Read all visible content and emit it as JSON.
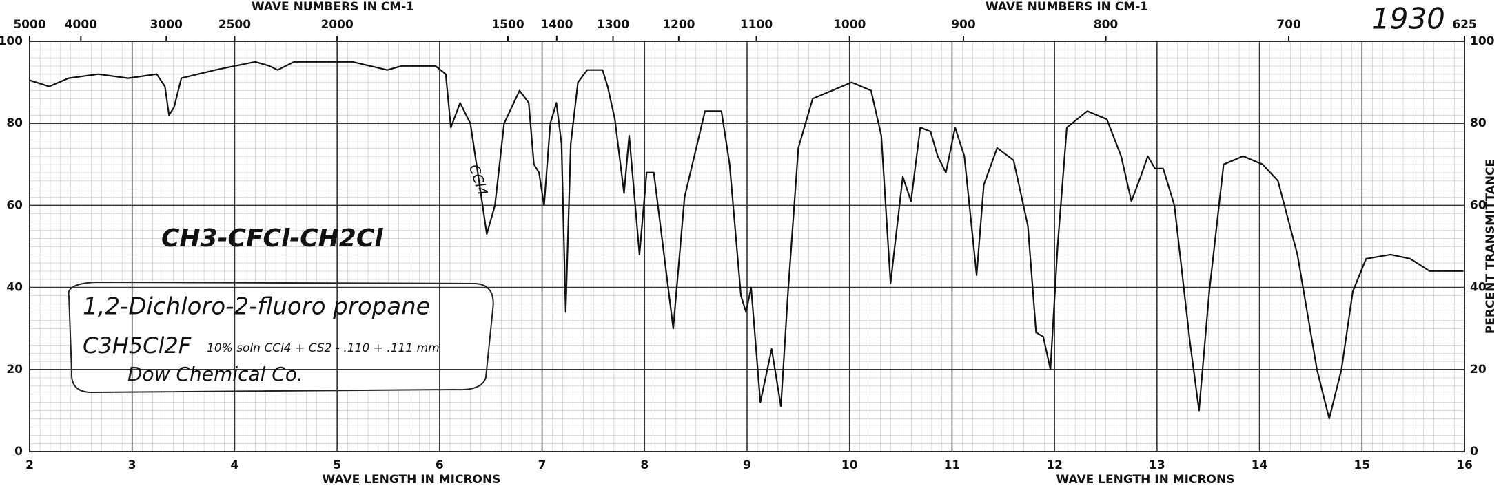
{
  "chart_data": {
    "type": "line",
    "top_axis": {
      "label": "WAVE NUMBERS IN CM-1",
      "ticks": [
        5000,
        4000,
        3000,
        2500,
        2000,
        1500,
        1400,
        1300,
        1200,
        1100,
        1000,
        900,
        800,
        700,
        625
      ]
    },
    "xlabel": "WAVE LENGTH IN MICRONS",
    "ylabel": "PERCENT TRANSMITTANCE",
    "xlim": [
      2,
      16
    ],
    "xticks": [
      2,
      3,
      4,
      5,
      6,
      7,
      8,
      9,
      10,
      11,
      12,
      13,
      14,
      15,
      16
    ],
    "ylim": [
      0,
      100
    ],
    "yticks": [
      0,
      20,
      40,
      60,
      80,
      100
    ],
    "grid": true,
    "annotations": [
      "1930",
      "CH3-CFCl-CH2Cl",
      "1,2-Dichloro-2-fluoro propane",
      "C3H5Cl2F",
      "10% soln CCl4 + CS2 - .110 + .111 mm",
      "Dow Chemical Co.",
      "CCl4"
    ],
    "x": [
      2.0,
      2.19,
      2.38,
      2.67,
      2.96,
      3.24,
      3.32,
      3.36,
      3.41,
      3.48,
      3.81,
      4.2,
      4.34,
      4.42,
      4.58,
      5.15,
      5.49,
      5.63,
      5.96,
      6.06,
      6.11,
      6.2,
      6.3,
      6.39,
      6.46,
      6.54,
      6.63,
      6.78,
      6.87,
      6.92,
      6.97,
      7.02,
      7.08,
      7.14,
      7.19,
      7.23,
      7.28,
      7.35,
      7.44,
      7.59,
      7.64,
      7.71,
      7.8,
      7.85,
      7.95,
      8.02,
      8.09,
      8.28,
      8.39,
      8.59,
      8.75,
      8.83,
      8.94,
      8.99,
      9.04,
      9.13,
      9.24,
      9.33,
      9.4,
      9.5,
      9.64,
      10.02,
      10.21,
      10.31,
      10.4,
      10.52,
      10.6,
      10.69,
      10.79,
      10.86,
      10.94,
      11.03,
      11.12,
      11.24,
      11.31,
      11.44,
      11.6,
      11.74,
      11.82,
      11.89,
      11.96,
      12.03,
      12.12,
      12.32,
      12.51,
      12.65,
      12.75,
      12.84,
      12.91,
      12.98,
      13.06,
      13.17,
      13.32,
      13.41,
      13.51,
      13.65,
      13.84,
      14.03,
      14.18,
      14.37,
      14.56,
      14.68,
      14.8,
      14.91,
      15.04,
      15.28,
      15.47,
      15.66,
      15.99
    ],
    "series": [
      {
        "color": "#111111",
        "values": [
          90.5,
          89,
          91,
          92,
          91,
          92,
          89,
          82,
          84,
          91,
          93,
          95,
          94,
          93,
          95,
          95,
          93,
          94,
          94,
          92,
          79,
          85,
          80,
          65,
          53,
          60,
          80,
          88,
          85,
          70,
          68,
          60,
          80,
          85,
          75,
          34,
          75,
          90,
          93,
          93,
          89,
          81,
          63,
          77,
          48,
          68,
          68,
          30,
          62,
          83,
          83,
          70,
          38,
          34,
          40,
          12,
          25,
          11,
          39,
          74,
          86,
          90,
          88,
          77,
          41,
          67,
          61,
          79,
          78,
          72,
          68,
          79,
          72,
          43,
          65,
          74,
          71,
          55,
          29,
          28,
          20,
          50,
          79,
          83,
          81,
          72,
          61,
          67,
          72,
          69,
          69,
          60,
          27,
          10,
          39,
          70,
          72,
          70,
          66,
          48,
          20,
          8,
          20,
          39,
          47,
          48,
          47,
          44,
          44
        ]
      }
    ]
  }
}
